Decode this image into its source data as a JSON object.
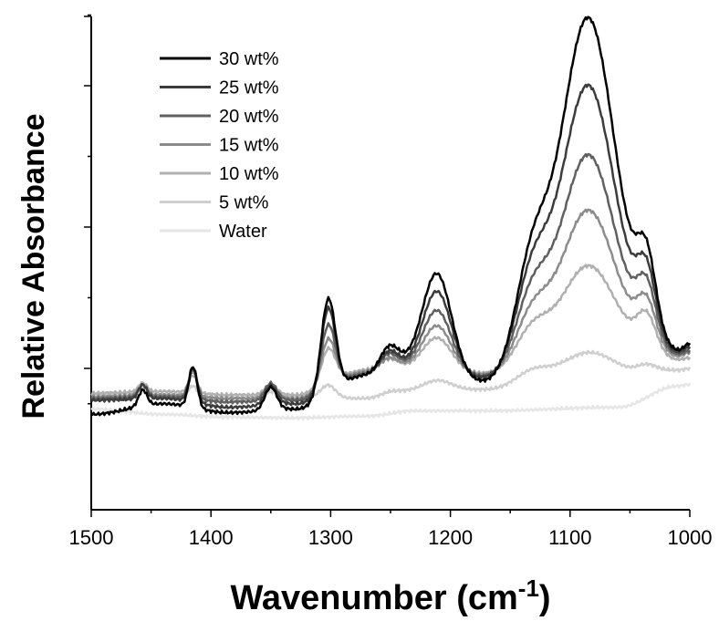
{
  "chart_data": {
    "type": "line",
    "xlabel": "Wavenumber (cm",
    "xlabel_sup": "-1",
    "xlabel_close": ")",
    "ylabel": "Relative Absorbance",
    "xlim": [
      1500,
      1000
    ],
    "ylim": [
      -0.1,
      1.2
    ],
    "y_major_ticks": [
      0,
      0.4,
      0.8
    ],
    "y_minor_ticks": [
      0.2,
      0.6,
      1.0,
      -0.1
    ],
    "x_ticks": [
      1500,
      1400,
      1300,
      1200,
      1100,
      1000
    ],
    "x_tick_labels": [
      "1500",
      "1400",
      "1300",
      "1200",
      "1100",
      "1000"
    ],
    "legend_position": "top-left",
    "grid": false,
    "series": [
      {
        "name": "30 wt%",
        "color": "#000000",
        "peaks": {
          "p1458": 0.045,
          "p1415": 0.115,
          "p1350": 0.065,
          "p1302": 0.27,
          "p1250": 0.07,
          "p1210": 0.27,
          "p1135": 0.28,
          "p1085": 0.875,
          "p1035": 0.2
        },
        "baseline": {
          "b1500": -0.13,
          "b1440": -0.1,
          "b1385": -0.125,
          "b1330": -0.115,
          "b1270": -0.02,
          "b1230": 0.01,
          "b1170": -0.04,
          "b1060": 0.14,
          "b1010": 0.05,
          "b1000": 0.07
        }
      },
      {
        "name": "25 wt%",
        "color": "#3c3c3c",
        "peaks": {
          "p1458": 0.04,
          "p1415": 0.1,
          "p1350": 0.055,
          "p1302": 0.235,
          "p1250": 0.06,
          "p1210": 0.225,
          "p1135": 0.24,
          "p1085": 0.7,
          "p1035": 0.175
        },
        "baseline": {
          "b1500": -0.09,
          "b1440": -0.085,
          "b1385": -0.11,
          "b1330": -0.1,
          "b1270": -0.02,
          "b1230": 0.0,
          "b1170": -0.03,
          "b1060": 0.12,
          "b1010": 0.045,
          "b1000": 0.06
        }
      },
      {
        "name": "20 wt%",
        "color": "#606060",
        "peaks": {
          "p1458": 0.035,
          "p1415": 0.085,
          "p1350": 0.05,
          "p1302": 0.18,
          "p1250": 0.05,
          "p1210": 0.17,
          "p1135": 0.19,
          "p1085": 0.52,
          "p1035": 0.15
        },
        "baseline": {
          "b1500": -0.085,
          "b1440": -0.08,
          "b1385": -0.095,
          "b1330": -0.09,
          "b1270": -0.015,
          "b1230": 0.0,
          "b1170": -0.025,
          "b1060": 0.1,
          "b1010": 0.04,
          "b1000": 0.05
        }
      },
      {
        "name": "15 wt%",
        "color": "#8c8c8c",
        "peaks": {
          "p1458": 0.03,
          "p1415": 0.07,
          "p1350": 0.04,
          "p1302": 0.135,
          "p1250": 0.035,
          "p1210": 0.125,
          "p1135": 0.14,
          "p1085": 0.38,
          "p1035": 0.12
        },
        "baseline": {
          "b1500": -0.08,
          "b1440": -0.075,
          "b1385": -0.085,
          "b1330": -0.085,
          "b1270": -0.01,
          "b1230": 0.0,
          "b1170": -0.02,
          "b1060": 0.08,
          "b1010": 0.035,
          "b1000": 0.045
        }
      },
      {
        "name": "10 wt%",
        "color": "#b0b0b0",
        "peaks": {
          "p1458": 0.025,
          "p1415": 0.05,
          "p1350": 0.03,
          "p1302": 0.1,
          "p1250": 0.03,
          "p1210": 0.09,
          "p1135": 0.1,
          "p1085": 0.24,
          "p1035": 0.1
        },
        "baseline": {
          "b1500": -0.07,
          "b1440": -0.065,
          "b1385": -0.075,
          "b1330": -0.075,
          "b1270": -0.005,
          "b1230": 0.0,
          "b1170": -0.015,
          "b1060": 0.06,
          "b1010": 0.025,
          "b1000": 0.03
        }
      },
      {
        "name": "5 wt%",
        "color": "#cfcfcf",
        "peaks": {
          "p1458": 0.02,
          "p1415": 0.03,
          "p1350": 0.015,
          "p1302": 0.035,
          "p1250": 0.01,
          "p1210": 0.03,
          "p1135": 0.04,
          "p1085": 0.07,
          "p1035": 0.02
        },
        "baseline": {
          "b1500": -0.075,
          "b1440": -0.075,
          "b1385": -0.085,
          "b1330": -0.08,
          "b1270": -0.085,
          "b1230": -0.065,
          "b1170": -0.06,
          "b1060": -0.02,
          "b1010": -0.005,
          "b1000": 0.0
        }
      },
      {
        "name": "Water",
        "color": "#e6e6e6",
        "peaks": {},
        "baseline": {
          "b1500": -0.115,
          "b1440": -0.13,
          "b1385": -0.138,
          "b1330": -0.14,
          "b1270": -0.135,
          "b1230": -0.12,
          "b1170": -0.12,
          "b1060": -0.11,
          "b1010": -0.05,
          "b1000": -0.045
        }
      }
    ]
  }
}
